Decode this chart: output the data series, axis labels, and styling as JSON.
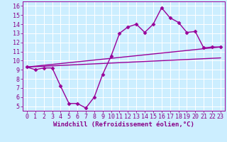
{
  "xlabel": "Windchill (Refroidissement éolien,°C)",
  "background_color": "#cceeff",
  "grid_color": "#ffffff",
  "line_color": "#990099",
  "xlim": [
    -0.5,
    23.5
  ],
  "ylim": [
    4.5,
    16.5
  ],
  "xticks": [
    0,
    1,
    2,
    3,
    4,
    5,
    6,
    7,
    8,
    9,
    10,
    11,
    12,
    13,
    14,
    15,
    16,
    17,
    18,
    19,
    20,
    21,
    22,
    23
  ],
  "yticks": [
    5,
    6,
    7,
    8,
    9,
    10,
    11,
    12,
    13,
    14,
    15,
    16
  ],
  "main_line_x": [
    0,
    1,
    2,
    3,
    4,
    5,
    6,
    7,
    8,
    9,
    10,
    11,
    12,
    13,
    14,
    15,
    16,
    17,
    18,
    19,
    20,
    21,
    22,
    23
  ],
  "main_line_y": [
    9.3,
    9.0,
    9.2,
    9.2,
    7.2,
    5.3,
    5.3,
    4.8,
    6.0,
    8.5,
    10.5,
    13.0,
    13.7,
    14.0,
    13.1,
    14.0,
    15.8,
    14.7,
    14.2,
    13.1,
    13.2,
    11.4,
    11.5,
    11.5
  ],
  "trend1_x": [
    0,
    23
  ],
  "trend1_y": [
    9.3,
    11.5
  ],
  "trend2_x": [
    0,
    23
  ],
  "trend2_y": [
    9.3,
    10.3
  ],
  "marker_style": "D",
  "marker_size": 2.5,
  "line_width": 1.0,
  "xlabel_fontsize": 6.5,
  "tick_fontsize": 6.0,
  "tick_color": "#880088",
  "label_color": "#880088"
}
